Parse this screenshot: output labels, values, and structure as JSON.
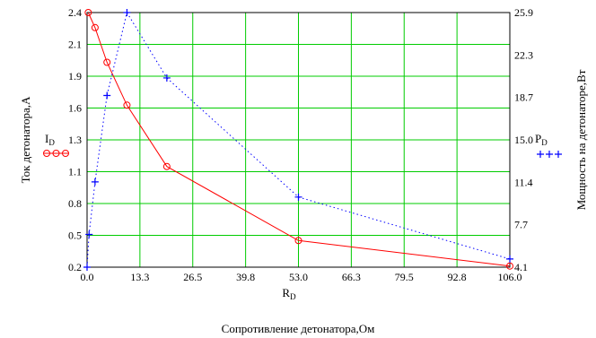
{
  "chart_data": {
    "type": "line",
    "xlabel": "Сопротивление детонатора,Ом",
    "x_axis_name": "R",
    "x_axis_sub": "D",
    "ylabel_left": "Ток детонатора,А",
    "ylabel_right": "Мощность на детонаторе,Вт",
    "xlim": [
      0,
      106
    ],
    "ylim_left": [
      0.2,
      2.4
    ],
    "ylim_right": [
      4.1,
      25.9
    ],
    "x_ticks": [
      "0.0",
      "13.3",
      "26.5",
      "39.8",
      "53.0",
      "66.3",
      "79.5",
      "92.8",
      "106.0"
    ],
    "y_left_ticks": [
      "2.4",
      "2.1",
      "1.9",
      "1.6",
      "1.3",
      "1.1",
      "0.8",
      "0.5",
      "0.2"
    ],
    "y_right_ticks": [
      "25.9",
      "22.3",
      "18.7",
      "15.0",
      "11.4",
      "7.7",
      "4.1"
    ],
    "grid": true,
    "series": [
      {
        "name": "I",
        "name_sub": "D",
        "legend_marker": "ooo",
        "axis": "left",
        "color": "#ff0000",
        "line_style": "solid",
        "marker": "circle",
        "x": [
          0.3,
          2,
          5,
          10,
          20,
          53,
          106
        ],
        "y": [
          2.4,
          2.27,
          1.97,
          1.6,
          1.07,
          0.43,
          0.21
        ]
      },
      {
        "name": "P",
        "name_sub": "D",
        "legend_marker": "+++",
        "axis": "right",
        "color": "#0000ff",
        "line_style": "dotted",
        "marker": "plus",
        "x": [
          0,
          0.5,
          2,
          5,
          10,
          20,
          53,
          106
        ],
        "y": [
          4.1,
          6.9,
          11.4,
          18.8,
          25.9,
          20.3,
          10.1,
          4.8
        ]
      }
    ]
  },
  "colors": {
    "grid": "#00cc00",
    "current": "#ff0000",
    "power": "#0000ff"
  }
}
